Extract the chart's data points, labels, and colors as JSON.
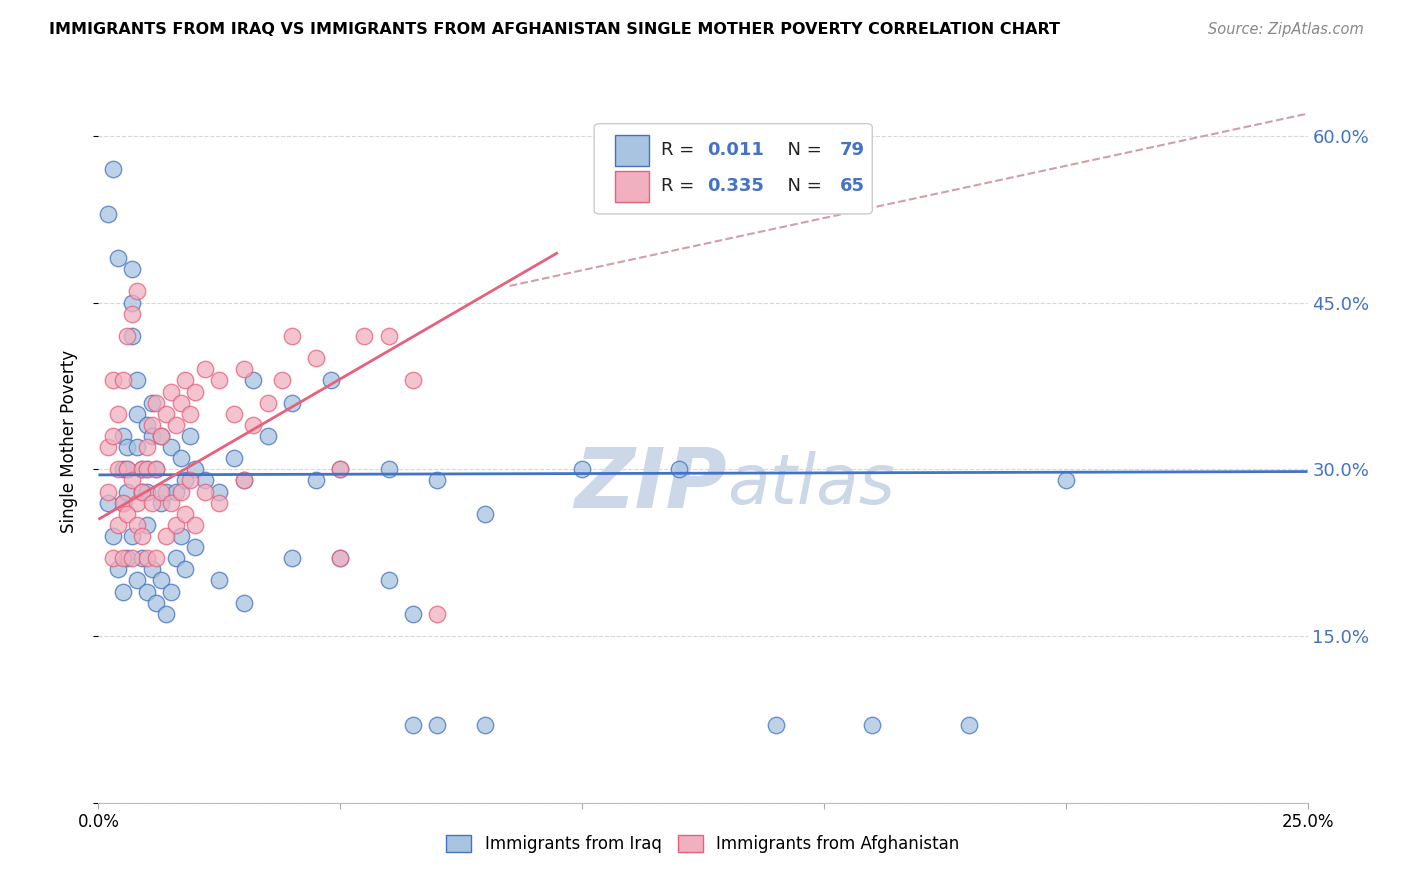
{
  "title": "IMMIGRANTS FROM IRAQ VS IMMIGRANTS FROM AFGHANISTAN SINGLE MOTHER POVERTY CORRELATION CHART",
  "source": "Source: ZipAtlas.com",
  "ylabel": "Single Mother Poverty",
  "legend_label1": "Immigrants from Iraq",
  "legend_label2": "Immigrants from Afghanistan",
  "legend_R1": "0.011",
  "legend_N1": "79",
  "legend_R2": "0.335",
  "legend_N2": "65",
  "xlim": [
    0.0,
    0.25
  ],
  "ylim": [
    0.0,
    0.65
  ],
  "color_iraq": "#a8c4e0",
  "color_afghanistan": "#f0b0c0",
  "color_iraq_line": "#4472c4",
  "color_afghanistan_line": "#e8607a",
  "color_ref_dashed": "#d0a0a8",
  "color_watermark": "#ccd8e8",
  "color_right_axis": "#4472c4",
  "color_grid": "#d8d8d8",
  "iraq_x": [
    0.002,
    0.003,
    0.004,
    0.005,
    0.005,
    0.005,
    0.006,
    0.006,
    0.006,
    0.007,
    0.007,
    0.007,
    0.008,
    0.008,
    0.008,
    0.009,
    0.009,
    0.01,
    0.01,
    0.01,
    0.011,
    0.011,
    0.012,
    0.013,
    0.013,
    0.014,
    0.015,
    0.016,
    0.017,
    0.018,
    0.019,
    0.02,
    0.022,
    0.025,
    0.028,
    0.03,
    0.032,
    0.035,
    0.04,
    0.045,
    0.048,
    0.05,
    0.06,
    0.065,
    0.07,
    0.08,
    0.1,
    0.12,
    0.14,
    0.16,
    0.18,
    0.002,
    0.003,
    0.004,
    0.005,
    0.006,
    0.007,
    0.008,
    0.009,
    0.01,
    0.01,
    0.011,
    0.012,
    0.013,
    0.014,
    0.015,
    0.016,
    0.017,
    0.018,
    0.02,
    0.025,
    0.03,
    0.04,
    0.05,
    0.06,
    0.065,
    0.07,
    0.08,
    0.2
  ],
  "iraq_y": [
    0.53,
    0.57,
    0.49,
    0.3,
    0.33,
    0.27,
    0.3,
    0.28,
    0.32,
    0.45,
    0.48,
    0.42,
    0.35,
    0.38,
    0.32,
    0.3,
    0.28,
    0.34,
    0.3,
    0.28,
    0.36,
    0.33,
    0.3,
    0.27,
    0.33,
    0.28,
    0.32,
    0.28,
    0.31,
    0.29,
    0.33,
    0.3,
    0.29,
    0.28,
    0.31,
    0.29,
    0.38,
    0.33,
    0.36,
    0.29,
    0.38,
    0.3,
    0.3,
    0.07,
    0.29,
    0.07,
    0.3,
    0.3,
    0.07,
    0.07,
    0.07,
    0.27,
    0.24,
    0.21,
    0.19,
    0.22,
    0.24,
    0.2,
    0.22,
    0.19,
    0.25,
    0.21,
    0.18,
    0.2,
    0.17,
    0.19,
    0.22,
    0.24,
    0.21,
    0.23,
    0.2,
    0.18,
    0.22,
    0.22,
    0.2,
    0.17,
    0.07,
    0.26,
    0.29
  ],
  "afghan_x": [
    0.002,
    0.002,
    0.003,
    0.003,
    0.004,
    0.004,
    0.005,
    0.005,
    0.006,
    0.006,
    0.007,
    0.007,
    0.008,
    0.008,
    0.009,
    0.009,
    0.01,
    0.01,
    0.011,
    0.012,
    0.012,
    0.013,
    0.014,
    0.015,
    0.016,
    0.017,
    0.018,
    0.019,
    0.02,
    0.022,
    0.025,
    0.028,
    0.03,
    0.032,
    0.035,
    0.038,
    0.04,
    0.045,
    0.05,
    0.055,
    0.06,
    0.065,
    0.07,
    0.003,
    0.004,
    0.005,
    0.006,
    0.007,
    0.008,
    0.009,
    0.01,
    0.011,
    0.012,
    0.013,
    0.014,
    0.015,
    0.016,
    0.017,
    0.018,
    0.019,
    0.02,
    0.022,
    0.025,
    0.03,
    0.05
  ],
  "afghan_y": [
    0.28,
    0.32,
    0.33,
    0.38,
    0.3,
    0.35,
    0.27,
    0.38,
    0.3,
    0.42,
    0.29,
    0.44,
    0.27,
    0.46,
    0.3,
    0.28,
    0.32,
    0.3,
    0.34,
    0.36,
    0.3,
    0.33,
    0.35,
    0.37,
    0.34,
    0.36,
    0.38,
    0.35,
    0.37,
    0.39,
    0.38,
    0.35,
    0.39,
    0.34,
    0.36,
    0.38,
    0.42,
    0.4,
    0.22,
    0.42,
    0.42,
    0.38,
    0.17,
    0.22,
    0.25,
    0.22,
    0.26,
    0.22,
    0.25,
    0.24,
    0.22,
    0.27,
    0.22,
    0.28,
    0.24,
    0.27,
    0.25,
    0.28,
    0.26,
    0.29,
    0.25,
    0.28,
    0.27,
    0.29,
    0.3
  ],
  "iraq_line_x": [
    0.0,
    0.25
  ],
  "iraq_line_y": [
    0.295,
    0.298
  ],
  "afghan_line_x": [
    0.0,
    0.095
  ],
  "afghan_line_y": [
    0.255,
    0.495
  ],
  "dashed_line_x": [
    0.085,
    0.25
  ],
  "dashed_line_y": [
    0.465,
    0.62
  ]
}
